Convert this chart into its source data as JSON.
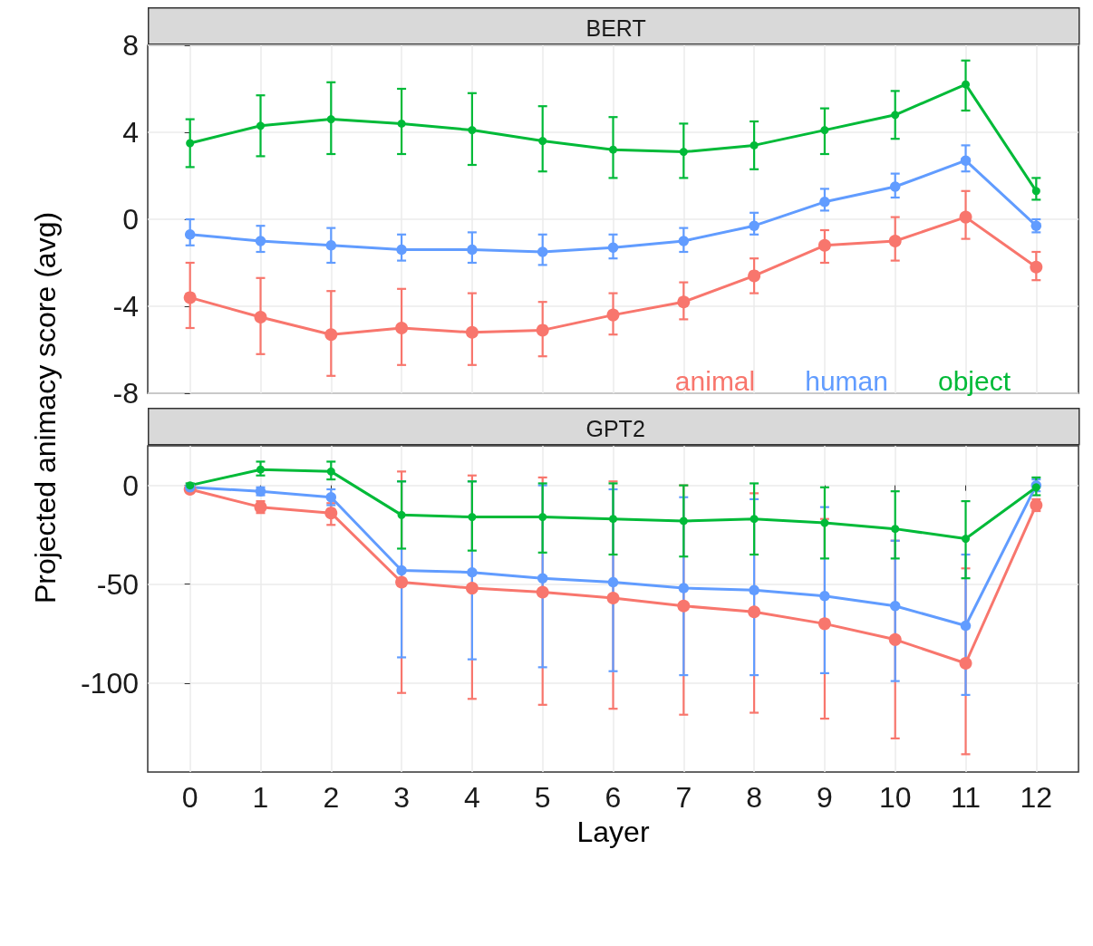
{
  "chart_data": [
    {
      "type": "line",
      "title": "BERT",
      "ylabel": "Projected animacy score (avg)",
      "x": [
        0,
        1,
        2,
        3,
        4,
        5,
        6,
        7,
        8,
        9,
        10,
        11,
        12
      ],
      "xlim": [
        -0.6,
        12.6
      ],
      "xticks": [
        0,
        1,
        2,
        3,
        4,
        5,
        6,
        7,
        8,
        9,
        10,
        11,
        12
      ],
      "ylim": [
        -8,
        8
      ],
      "yticks": [
        -8,
        -4,
        0,
        4,
        8
      ],
      "grid": true,
      "legend": "bottom right",
      "marker": "circle",
      "line_style": "solid",
      "tick_labels": "y",
      "series": [
        {
          "name": "animal",
          "color": "#f8766d",
          "values": [
            -3.6,
            -4.5,
            -5.3,
            -5.0,
            -5.2,
            -5.1,
            -4.4,
            -3.8,
            -2.6,
            -1.2,
            -1.0,
            0.1,
            -2.2
          ],
          "errors": [
            [
              -5.0,
              -2.0
            ],
            [
              -6.2,
              -2.7
            ],
            [
              -7.2,
              -3.3
            ],
            [
              -6.7,
              -3.2
            ],
            [
              -6.7,
              -3.4
            ],
            [
              -6.3,
              -3.8
            ],
            [
              -5.3,
              -3.4
            ],
            [
              -4.6,
              -2.9
            ],
            [
              -3.4,
              -1.8
            ],
            [
              -2.0,
              -0.5
            ],
            [
              -1.9,
              0.1
            ],
            [
              -0.9,
              1.3
            ],
            [
              -2.8,
              -1.5
            ]
          ]
        },
        {
          "name": "human",
          "color": "#619cff",
          "values": [
            -0.7,
            -1.0,
            -1.2,
            -1.4,
            -1.4,
            -1.5,
            -1.3,
            -1.0,
            -0.3,
            0.8,
            1.5,
            2.7,
            -0.3
          ],
          "errors": [
            [
              -1.2,
              0
            ],
            [
              -1.5,
              -0.3
            ],
            [
              -2.0,
              -0.4
            ],
            [
              -1.9,
              -0.7
            ],
            [
              -2.0,
              -0.6
            ],
            [
              -2.1,
              -0.7
            ],
            [
              -1.8,
              -0.7
            ],
            [
              -1.5,
              -0.4
            ],
            [
              -0.7,
              0.3
            ],
            [
              0.4,
              1.4
            ],
            [
              1.0,
              2.1
            ],
            [
              2.2,
              3.4
            ],
            [
              -0.6,
              0
            ]
          ]
        },
        {
          "name": "object",
          "color": "#00ba38",
          "values": [
            3.5,
            4.3,
            4.6,
            4.4,
            4.1,
            3.6,
            3.2,
            3.1,
            3.4,
            4.1,
            4.8,
            6.2,
            1.3
          ],
          "errors": [
            [
              2.4,
              4.6
            ],
            [
              2.9,
              5.7
            ],
            [
              3.0,
              6.3
            ],
            [
              3.0,
              6.0
            ],
            [
              2.5,
              5.8
            ],
            [
              2.2,
              5.2
            ],
            [
              1.9,
              4.7
            ],
            [
              1.9,
              4.4
            ],
            [
              2.3,
              4.5
            ],
            [
              3.0,
              5.1
            ],
            [
              3.7,
              5.9
            ],
            [
              5.0,
              7.3
            ],
            [
              0.9,
              1.9
            ]
          ]
        }
      ]
    },
    {
      "type": "line",
      "title": "GPT2",
      "xlabel": "Layer",
      "x": [
        0,
        1,
        2,
        3,
        4,
        5,
        6,
        7,
        8,
        9,
        10,
        11,
        12
      ],
      "xlim": [
        -0.6,
        12.6
      ],
      "xticks": [
        0,
        1,
        2,
        3,
        4,
        5,
        6,
        7,
        8,
        9,
        10,
        11,
        12
      ],
      "ylim": [
        -145,
        20
      ],
      "yticks": [
        -100,
        -50,
        0
      ],
      "grid": true,
      "marker": "circle",
      "line_style": "solid",
      "series": [
        {
          "color": "#f8766d",
          "values": [
            -2,
            -11,
            -14,
            -49,
            -52,
            -54,
            -57,
            -61,
            -64,
            -70,
            -78,
            -90,
            -10
          ],
          "errors": [
            [
              -3,
              -1
            ],
            [
              -14,
              -8
            ],
            [
              -20,
              -9
            ],
            [
              -105,
              7
            ],
            [
              -108,
              5
            ],
            [
              -111,
              4
            ],
            [
              -113,
              2
            ],
            [
              -116,
              0
            ],
            [
              -115,
              -4
            ],
            [
              -118,
              -17
            ],
            [
              -128,
              -28
            ],
            [
              -136,
              -42
            ],
            [
              -13,
              -7
            ]
          ]
        },
        {
          "color": "#619cff",
          "values": [
            -1,
            -3,
            -6,
            -43,
            -44,
            -47,
            -49,
            -52,
            -53,
            -56,
            -61,
            -71,
            0
          ],
          "errors": [
            [
              -2,
              0
            ],
            [
              -5,
              -1
            ],
            [
              -10,
              -2
            ],
            [
              -87,
              2
            ],
            [
              -88,
              2
            ],
            [
              -92,
              0
            ],
            [
              -94,
              -2
            ],
            [
              -96,
              -6
            ],
            [
              -96,
              -7
            ],
            [
              -95,
              -11
            ],
            [
              -99,
              -28
            ],
            [
              -106,
              -35
            ],
            [
              -3,
              3
            ]
          ]
        },
        {
          "color": "#00ba38",
          "values": [
            0,
            8,
            7,
            -15,
            -16,
            -16,
            -17,
            -18,
            -17,
            -19,
            -22,
            -27,
            -1
          ],
          "errors": [
            [
              -1,
              1
            ],
            [
              5,
              12
            ],
            [
              3,
              12
            ],
            [
              -32,
              2
            ],
            [
              -33,
              2
            ],
            [
              -34,
              1
            ],
            [
              -35,
              1
            ],
            [
              -36,
              0
            ],
            [
              -35,
              1
            ],
            [
              -37,
              -1
            ],
            [
              -37,
              -3
            ],
            [
              -47,
              -8
            ],
            [
              -5,
              4
            ]
          ]
        }
      ]
    }
  ]
}
